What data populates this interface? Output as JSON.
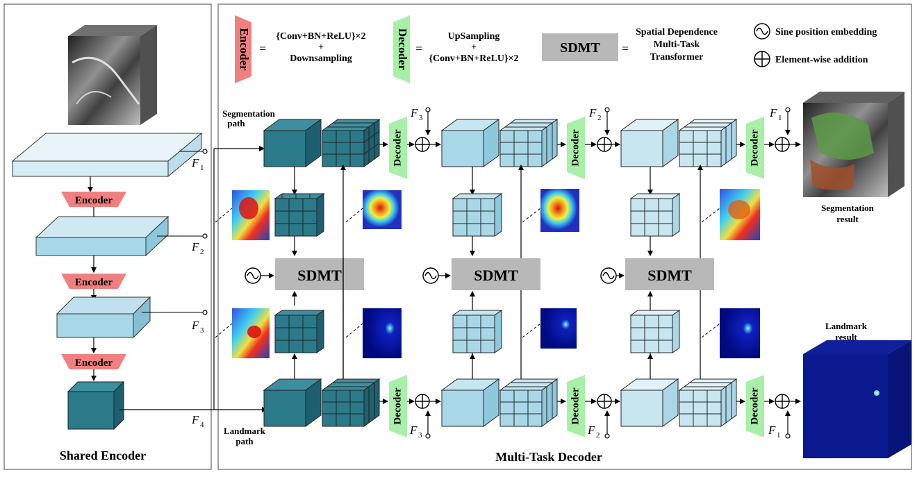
{
  "legend": {
    "encoder_label": "Encoder",
    "encoder_eq1": "{Conv+BN+ReLU}×2",
    "encoder_eq2": "+",
    "encoder_eq3": "Downsampling",
    "decoder_label": "Decoder",
    "decoder_eq1": "UpSampling",
    "decoder_eq2": "+",
    "decoder_eq3": "{Conv+BN+ReLU}×2",
    "sdmt_label": "SDMT",
    "sdmt_eq1": "Spatial Dependence",
    "sdmt_eq2": "Multi-Task",
    "sdmt_eq3": "Transformer",
    "equals": "=",
    "sine_label": "Sine position embedding",
    "add_label": "Element-wise addition"
  },
  "encoder": {
    "title": "Shared Encoder",
    "block_label": "Encoder",
    "features": [
      "F",
      "F",
      "F",
      "F"
    ],
    "subscripts": [
      "1",
      "2",
      "3",
      "4"
    ]
  },
  "decoder": {
    "title": "Multi-Task Decoder",
    "seg_path_1": "Segmentation",
    "seg_path_2": "path",
    "lmk_path_1": "Landmark",
    "lmk_path_2": "path",
    "block_label": "Decoder",
    "sdmt_label": "SDMT",
    "f_letter": "F",
    "top_subs": [
      "3",
      "2",
      "1"
    ],
    "bottom_subs": [
      "3",
      "2",
      "1"
    ],
    "seg_result_1": "Segmentation",
    "seg_result_2": "result",
    "lmk_result_1": "Landmark",
    "lmk_result_2": "result"
  },
  "colors": {
    "encoder_block": "#f08080",
    "decoder_block": "#a8f0a8",
    "sdmt_block": "#b8b8b8",
    "dark_teal": "#2b7a8a",
    "light_blue": "#a8d8e8",
    "pale_blue": "#d4ecf4"
  }
}
